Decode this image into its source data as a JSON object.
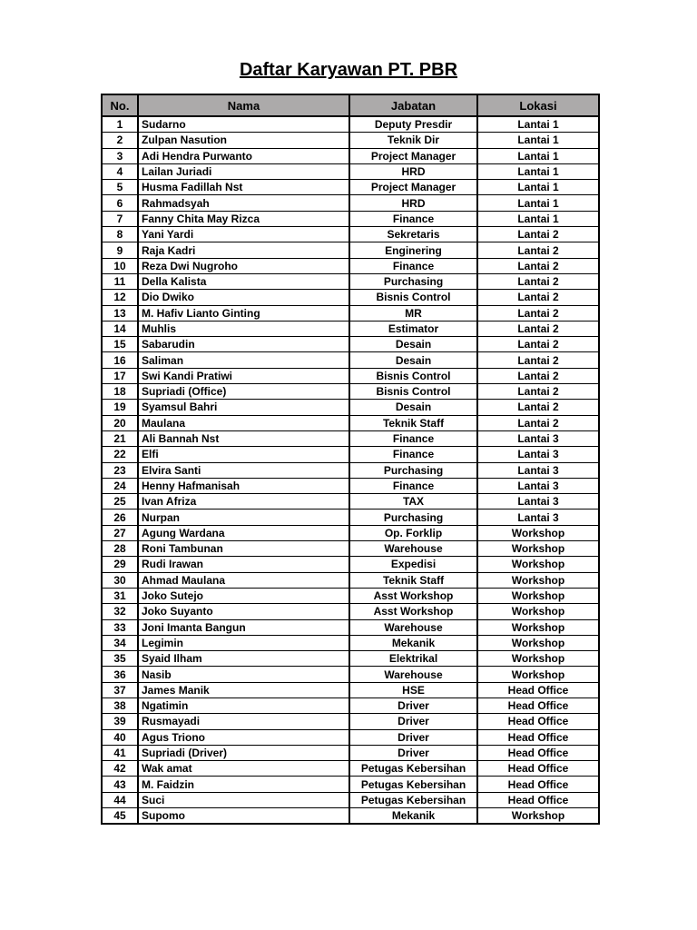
{
  "page": {
    "title": "Daftar Karyawan PT. PBR"
  },
  "colors": {
    "page_bg": "#ffffff",
    "header_bg": "#acaaaa",
    "border": "#000000",
    "text": "#000000"
  },
  "table": {
    "columns": [
      "No.",
      "Nama",
      "Jabatan",
      "Lokasi"
    ],
    "rows": [
      [
        "1",
        "Sudarno",
        "Deputy Presdir",
        "Lantai 1"
      ],
      [
        "2",
        "Zulpan Nasution",
        "Teknik Dir",
        "Lantai 1"
      ],
      [
        "3",
        "Adi Hendra Purwanto",
        "Project Manager",
        "Lantai 1"
      ],
      [
        "4",
        "Lailan Juriadi",
        "HRD",
        "Lantai 1"
      ],
      [
        "5",
        "Husma Fadillah Nst",
        "Project Manager",
        "Lantai 1"
      ],
      [
        "6",
        "Rahmadsyah",
        "HRD",
        "Lantai 1"
      ],
      [
        "7",
        "Fanny Chita May Rizca",
        "Finance",
        "Lantai 1"
      ],
      [
        "8",
        "Yani Yardi",
        "Sekretaris",
        "Lantai 2"
      ],
      [
        "9",
        "Raja Kadri",
        "Enginering",
        "Lantai 2"
      ],
      [
        "10",
        "Reza Dwi Nugroho",
        "Finance",
        "Lantai 2"
      ],
      [
        "11",
        "Della Kalista",
        "Purchasing",
        "Lantai 2"
      ],
      [
        "12",
        "Dio Dwiko",
        "Bisnis Control",
        "Lantai 2"
      ],
      [
        "13",
        "M. Hafiv Lianto Ginting",
        "MR",
        "Lantai 2"
      ],
      [
        "14",
        "Muhlis",
        "Estimator",
        "Lantai 2"
      ],
      [
        "15",
        "Sabarudin",
        "Desain",
        "Lantai 2"
      ],
      [
        "16",
        "Saliman",
        "Desain",
        "Lantai 2"
      ],
      [
        "17",
        "Swi Kandi Pratiwi",
        "Bisnis Control",
        "Lantai 2"
      ],
      [
        "18",
        "Supriadi (Office)",
        "Bisnis Control",
        "Lantai 2"
      ],
      [
        "19",
        "Syamsul Bahri",
        "Desain",
        "Lantai 2"
      ],
      [
        "20",
        "Maulana",
        "Teknik Staff",
        "Lantai 2"
      ],
      [
        "21",
        "Ali Bannah Nst",
        "Finance",
        "Lantai 3"
      ],
      [
        "22",
        "Elfi",
        "Finance",
        "Lantai 3"
      ],
      [
        "23",
        "Elvira Santi",
        "Purchasing",
        "Lantai 3"
      ],
      [
        "24",
        "Henny Hafmanisah",
        "Finance",
        "Lantai 3"
      ],
      [
        "25",
        "Ivan Afriza",
        "TAX",
        "Lantai 3"
      ],
      [
        "26",
        "Nurpan",
        "Purchasing",
        "Lantai 3"
      ],
      [
        "27",
        "Agung Wardana",
        "Op. Forklip",
        "Workshop"
      ],
      [
        "28",
        "Roni Tambunan",
        "Warehouse",
        "Workshop"
      ],
      [
        "29",
        "Rudi Irawan",
        "Expedisi",
        "Workshop"
      ],
      [
        "30",
        "Ahmad Maulana",
        "Teknik Staff",
        "Workshop"
      ],
      [
        "31",
        "Joko Sutejo",
        "Asst Workshop",
        "Workshop"
      ],
      [
        "32",
        "Joko Suyanto",
        "Asst Workshop",
        "Workshop"
      ],
      [
        "33",
        "Joni Imanta Bangun",
        "Warehouse",
        "Workshop"
      ],
      [
        "34",
        "Legimin",
        "Mekanik",
        "Workshop"
      ],
      [
        "35",
        "Syaid Ilham",
        "Elektrikal",
        "Workshop"
      ],
      [
        "36",
        "Nasib",
        "Warehouse",
        "Workshop"
      ],
      [
        "37",
        "James Manik",
        "HSE",
        "Head Office"
      ],
      [
        "38",
        "Ngatimin",
        "Driver",
        "Head Office"
      ],
      [
        "39",
        "Rusmayadi",
        "Driver",
        "Head Office"
      ],
      [
        "40",
        "Agus Triono",
        "Driver",
        "Head Office"
      ],
      [
        "41",
        "Supriadi (Driver)",
        "Driver",
        "Head Office"
      ],
      [
        "42",
        "Wak amat",
        "Petugas Kebersihan",
        "Head Office"
      ],
      [
        "43",
        "M. Faidzin",
        "Petugas Kebersihan",
        "Head Office"
      ],
      [
        "44",
        "Suci",
        "Petugas Kebersihan",
        "Head Office"
      ],
      [
        "45",
        "Supomo",
        "Mekanik",
        "Workshop"
      ]
    ]
  }
}
